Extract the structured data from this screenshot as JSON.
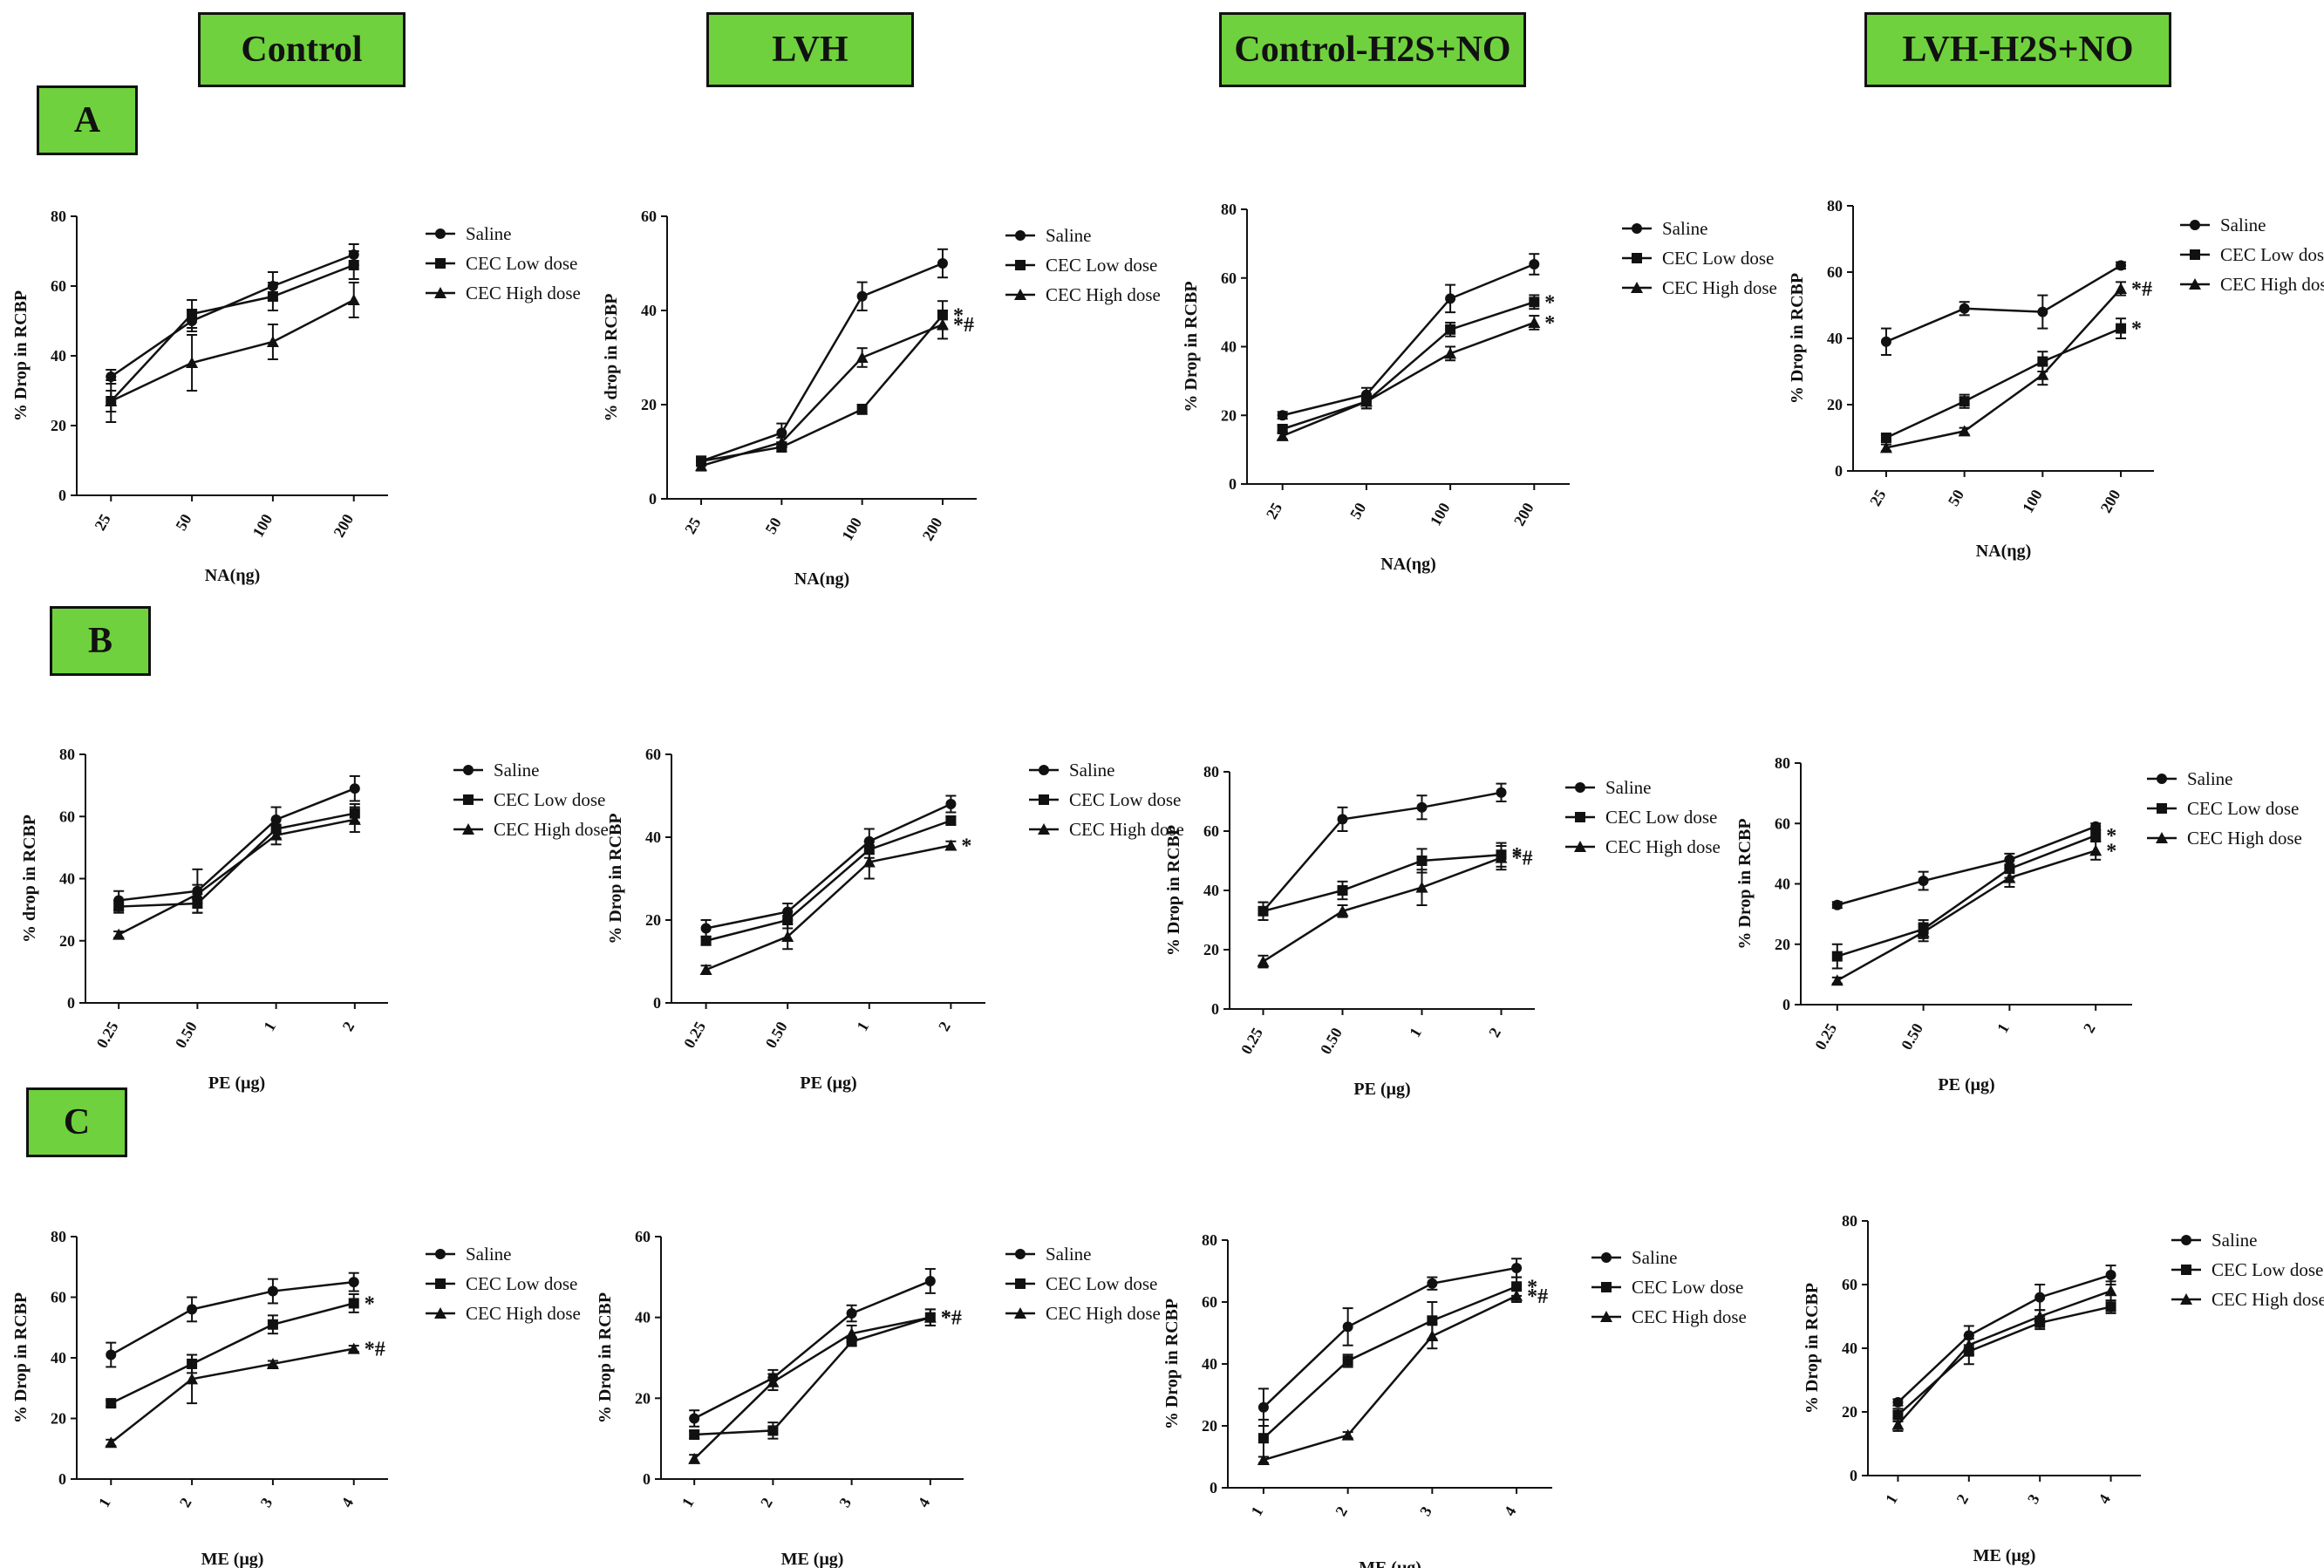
{
  "column_headers": [
    "Control",
    "LVH",
    "Control-H2S+NO",
    "LVH-H2S+NO"
  ],
  "row_headers": [
    "A",
    "B",
    "C"
  ],
  "legend": [
    "Saline",
    "CEC Low dose",
    "CEC High dose"
  ],
  "chart_data": [
    {
      "id": "A1",
      "type": "line",
      "panel": "A",
      "column": "Control",
      "xlabel": "NA(ηg)",
      "ylabel": "%  Drop in RCBP",
      "categories": [
        "25",
        "50",
        "100",
        "200"
      ],
      "ylim": [
        0,
        80
      ],
      "yticks": [
        0,
        20,
        40,
        60,
        80
      ],
      "series": [
        {
          "name": "Saline",
          "values": [
            34,
            50,
            60,
            69
          ],
          "err": [
            2,
            3,
            4,
            3
          ]
        },
        {
          "name": "CEC Low dose",
          "values": [
            27,
            52,
            57,
            66
          ],
          "err": [
            3,
            4,
            4,
            4
          ]
        },
        {
          "name": "CEC High dose",
          "values": [
            27,
            38,
            44,
            56
          ],
          "err": [
            6,
            8,
            5,
            5
          ]
        }
      ],
      "annotations": [
        "",
        "",
        ""
      ]
    },
    {
      "id": "A2",
      "type": "line",
      "panel": "A",
      "column": "LVH",
      "xlabel": "NA(ng)",
      "ylabel": "% drop in RCBP",
      "categories": [
        "25",
        "50",
        "100",
        "200"
      ],
      "ylim": [
        0,
        60
      ],
      "yticks": [
        0,
        20,
        40,
        60
      ],
      "series": [
        {
          "name": "Saline",
          "values": [
            8,
            14,
            43,
            50
          ],
          "err": [
            1,
            2,
            3,
            3
          ]
        },
        {
          "name": "CEC Low dose",
          "values": [
            8,
            11,
            19,
            39
          ],
          "err": [
            1,
            1,
            1,
            3
          ]
        },
        {
          "name": "CEC High dose",
          "values": [
            7,
            12,
            30,
            37
          ],
          "err": [
            1,
            1,
            2,
            3
          ]
        }
      ],
      "annotations": [
        "",
        "*",
        "*#"
      ]
    },
    {
      "id": "A3",
      "type": "line",
      "panel": "A",
      "column": "Control-H2S+NO",
      "xlabel": "NA(ηg)",
      "ylabel": "%  Drop in RCBP",
      "categories": [
        "25",
        "50",
        "100",
        "200"
      ],
      "ylim": [
        0,
        80
      ],
      "yticks": [
        0,
        20,
        40,
        60,
        80
      ],
      "series": [
        {
          "name": "Saline",
          "values": [
            20,
            26,
            54,
            64
          ],
          "err": [
            1,
            2,
            4,
            3
          ]
        },
        {
          "name": "CEC Low dose",
          "values": [
            16,
            24,
            45,
            53
          ],
          "err": [
            1,
            2,
            2,
            2
          ]
        },
        {
          "name": "CEC High dose",
          "values": [
            14,
            24,
            38,
            47
          ],
          "err": [
            1,
            2,
            2,
            2
          ]
        }
      ],
      "annotations": [
        "",
        "*",
        "*"
      ]
    },
    {
      "id": "A4",
      "type": "line",
      "panel": "A",
      "column": "LVH-H2S+NO",
      "xlabel": "NA(ηg)",
      "ylabel": "%  Drop in RCBP",
      "categories": [
        "25",
        "50",
        "100",
        "200"
      ],
      "ylim": [
        0,
        80
      ],
      "yticks": [
        0,
        20,
        40,
        60,
        80
      ],
      "series": [
        {
          "name": "Saline",
          "values": [
            39,
            49,
            48,
            62
          ],
          "err": [
            4,
            2,
            5,
            1
          ]
        },
        {
          "name": "CEC Low dose",
          "values": [
            10,
            21,
            33,
            43
          ],
          "err": [
            1,
            2,
            3,
            3
          ]
        },
        {
          "name": "CEC High dose",
          "values": [
            7,
            12,
            29,
            55
          ],
          "err": [
            1,
            1,
            3,
            2
          ]
        }
      ],
      "annotations": [
        "",
        "*",
        "*#"
      ]
    },
    {
      "id": "B1",
      "type": "line",
      "panel": "B",
      "column": "Control",
      "xlabel": "PE (μg)",
      "ylabel": "% drop in RCBP",
      "categories": [
        "0.25",
        "0.50",
        "1",
        "2"
      ],
      "ylim": [
        0,
        80
      ],
      "yticks": [
        0,
        20,
        40,
        60,
        80
      ],
      "series": [
        {
          "name": "Saline",
          "values": [
            33,
            36,
            59,
            69
          ],
          "err": [
            3,
            7,
            4,
            4
          ]
        },
        {
          "name": "CEC Low dose",
          "values": [
            31,
            32,
            56,
            61
          ],
          "err": [
            2,
            3,
            3,
            3
          ]
        },
        {
          "name": "CEC High dose",
          "values": [
            22,
            35,
            54,
            59
          ],
          "err": [
            1,
            3,
            3,
            4
          ]
        }
      ],
      "annotations": [
        "",
        "",
        ""
      ]
    },
    {
      "id": "B2",
      "type": "line",
      "panel": "B",
      "column": "LVH",
      "xlabel": "PE (μg)",
      "ylabel": "% Drop in RCBP",
      "categories": [
        "0.25",
        "0.50",
        "1",
        "2"
      ],
      "ylim": [
        0,
        60
      ],
      "yticks": [
        0,
        20,
        40,
        60
      ],
      "series": [
        {
          "name": "Saline",
          "values": [
            18,
            22,
            39,
            48
          ],
          "err": [
            2,
            2,
            3,
            2
          ]
        },
        {
          "name": "CEC Low dose",
          "values": [
            15,
            20,
            37,
            44
          ],
          "err": [
            1,
            2,
            2,
            1
          ]
        },
        {
          "name": "CEC High dose",
          "values": [
            8,
            16,
            34,
            38
          ],
          "err": [
            1,
            3,
            4,
            1
          ]
        }
      ],
      "annotations": [
        "",
        "",
        "*"
      ]
    },
    {
      "id": "B3",
      "type": "line",
      "panel": "B",
      "column": "Control-H2S+NO",
      "xlabel": "PE (μg)",
      "ylabel": "%  Drop in RCBP",
      "categories": [
        "0.25",
        "0.50",
        "1",
        "2"
      ],
      "ylim": [
        0,
        80
      ],
      "yticks": [
        0,
        20,
        40,
        60,
        80
      ],
      "series": [
        {
          "name": "Saline",
          "values": [
            33,
            64,
            68,
            73
          ],
          "err": [
            3,
            4,
            4,
            3
          ]
        },
        {
          "name": "CEC Low dose",
          "values": [
            33,
            40,
            50,
            52
          ],
          "err": [
            3,
            3,
            4,
            4
          ]
        },
        {
          "name": "CEC High dose",
          "values": [
            16,
            33,
            41,
            51
          ],
          "err": [
            2,
            2,
            6,
            4
          ]
        }
      ],
      "annotations": [
        "",
        "*",
        "*#"
      ]
    },
    {
      "id": "B4",
      "type": "line",
      "panel": "B",
      "column": "LVH-H2S+NO",
      "xlabel": "PE (μg)",
      "ylabel": "%  Drop in RCBP",
      "categories": [
        "0.25",
        "0.50",
        "1",
        "2"
      ],
      "ylim": [
        0,
        80
      ],
      "yticks": [
        0,
        20,
        40,
        60,
        80
      ],
      "series": [
        {
          "name": "Saline",
          "values": [
            33,
            41,
            48,
            59
          ],
          "err": [
            1,
            3,
            2,
            1
          ]
        },
        {
          "name": "CEC Low dose",
          "values": [
            16,
            25,
            45,
            56
          ],
          "err": [
            4,
            3,
            3,
            2
          ]
        },
        {
          "name": "CEC High dose",
          "values": [
            8,
            24,
            42,
            51
          ],
          "err": [
            1,
            3,
            3,
            3
          ]
        }
      ],
      "annotations": [
        "",
        "*",
        "*"
      ]
    },
    {
      "id": "C1",
      "type": "line",
      "panel": "C",
      "column": "Control",
      "xlabel": "ME (μg)",
      "ylabel": "%  Drop in RCBP",
      "categories": [
        "1",
        "2",
        "3",
        "4"
      ],
      "ylim": [
        0,
        80
      ],
      "yticks": [
        0,
        20,
        40,
        60,
        80
      ],
      "series": [
        {
          "name": "Saline",
          "values": [
            41,
            56,
            62,
            65
          ],
          "err": [
            4,
            4,
            4,
            3
          ]
        },
        {
          "name": "CEC Low dose",
          "values": [
            25,
            38,
            51,
            58
          ],
          "err": [
            1,
            3,
            3,
            3
          ]
        },
        {
          "name": "CEC High dose",
          "values": [
            12,
            33,
            38,
            43
          ],
          "err": [
            1,
            8,
            1,
            1
          ]
        }
      ],
      "annotations": [
        "",
        "*",
        "*#"
      ]
    },
    {
      "id": "C2",
      "type": "line",
      "panel": "C",
      "column": "LVH",
      "xlabel": "ME (μg)",
      "ylabel": "%  Drop in RCBP",
      "categories": [
        "1",
        "2",
        "3",
        "4"
      ],
      "ylim": [
        0,
        60
      ],
      "yticks": [
        0,
        20,
        40,
        60
      ],
      "series": [
        {
          "name": "Saline",
          "values": [
            15,
            25,
            41,
            49
          ],
          "err": [
            2,
            2,
            2,
            3
          ]
        },
        {
          "name": "CEC Low dose",
          "values": [
            11,
            12,
            34,
            40
          ],
          "err": [
            1,
            2,
            1,
            2
          ]
        },
        {
          "name": "CEC High dose",
          "values": [
            5,
            24,
            36,
            40
          ],
          "err": [
            1,
            2,
            2,
            2
          ]
        }
      ],
      "annotations": [
        "",
        "*",
        "*#"
      ]
    },
    {
      "id": "C3",
      "type": "line",
      "panel": "C",
      "column": "Control-H2S+NO",
      "xlabel": "ME (μg)",
      "ylabel": "%  Drop in RCBP",
      "categories": [
        "1",
        "2",
        "3",
        "4"
      ],
      "ylim": [
        0,
        80
      ],
      "yticks": [
        0,
        20,
        40,
        60,
        80
      ],
      "series": [
        {
          "name": "Saline",
          "values": [
            26,
            52,
            66,
            71
          ],
          "err": [
            6,
            6,
            2,
            3
          ]
        },
        {
          "name": "CEC Low dose",
          "values": [
            16,
            41,
            54,
            65
          ],
          "err": [
            6,
            2,
            6,
            3
          ]
        },
        {
          "name": "CEC High dose",
          "values": [
            9,
            17,
            49,
            62
          ],
          "err": [
            1,
            1,
            4,
            2
          ]
        }
      ],
      "annotations": [
        "",
        "*",
        "*#"
      ]
    },
    {
      "id": "C4",
      "type": "line",
      "panel": "C",
      "column": "LVH-H2S+NO",
      "xlabel": "ME (μg)",
      "ylabel": "%  Drop in RCBP",
      "categories": [
        "1",
        "2",
        "3",
        "4"
      ],
      "ylim": [
        0,
        80
      ],
      "yticks": [
        0,
        20,
        40,
        60,
        80
      ],
      "series": [
        {
          "name": "Saline",
          "values": [
            23,
            44,
            56,
            63
          ],
          "err": [
            1,
            3,
            4,
            3
          ]
        },
        {
          "name": "CEC Low dose",
          "values": [
            19,
            39,
            48,
            53
          ],
          "err": [
            2,
            4,
            2,
            2
          ]
        },
        {
          "name": "CEC High dose",
          "values": [
            16,
            41,
            50,
            58
          ],
          "err": [
            2,
            3,
            2,
            3
          ]
        }
      ],
      "annotations": [
        "",
        "",
        ""
      ]
    }
  ]
}
